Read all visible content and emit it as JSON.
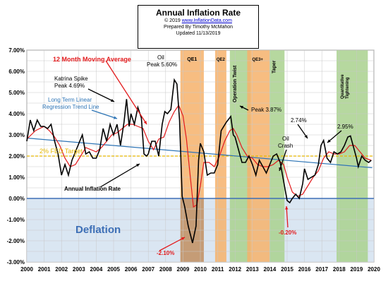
{
  "chart_data": {
    "type": "line",
    "title": "Annual  Inflation Rate",
    "subtitle_lines": [
      "© 2019  ",
      "www.InflationData.com",
      "Prepared  By Timothy McMahon",
      "Updated  11/13/2019"
    ],
    "xlabel": "",
    "ylabel": "",
    "xlim": [
      2000,
      2020
    ],
    "ylim": [
      -3.0,
      7.0
    ],
    "x_ticks": [
      "2000",
      "2001",
      "2002",
      "2003",
      "2004",
      "2005",
      "2006",
      "2007",
      "2008",
      "2009",
      "2010",
      "2011",
      "2012",
      "2013",
      "2014",
      "2015",
      "2016",
      "2017",
      "2018",
      "2019",
      "2020"
    ],
    "y_ticks": [
      "7.00%",
      "6.00%",
      "5.00%",
      "4.00%",
      "3.00%",
      "2.00%",
      "1.00%",
      "0.00%",
      "-1.00%",
      "-2.00%",
      "-3.00%"
    ],
    "grid": true,
    "colors": {
      "inflation": "#000000",
      "moving_average": "#e31a1c",
      "trend": "#2e75b6",
      "fed_target": "#e6b800",
      "deflation_fill": "#dae6f2",
      "qe_fill": "#f6b26b",
      "taper_fill": "#a9d18e",
      "zero_line": "#3d6fb6"
    },
    "series": [
      {
        "name": "Annual Inflation Rate",
        "points": [
          [
            2000,
            2.7
          ],
          [
            2000.2,
            3.7
          ],
          [
            2000.4,
            3.2
          ],
          [
            2000.6,
            3.7
          ],
          [
            2000.8,
            3.4
          ],
          [
            2001.0,
            3.4
          ],
          [
            2001.2,
            3.3
          ],
          [
            2001.4,
            3.5
          ],
          [
            2001.6,
            2.7
          ],
          [
            2001.8,
            2.1
          ],
          [
            2002.0,
            1.1
          ],
          [
            2002.2,
            1.6
          ],
          [
            2002.4,
            1.1
          ],
          [
            2002.6,
            1.8
          ],
          [
            2002.8,
            2.2
          ],
          [
            2003.0,
            2.6
          ],
          [
            2003.2,
            3.0
          ],
          [
            2003.4,
            2.1
          ],
          [
            2003.6,
            2.2
          ],
          [
            2003.8,
            1.9
          ],
          [
            2004.0,
            1.9
          ],
          [
            2004.2,
            2.3
          ],
          [
            2004.4,
            3.3
          ],
          [
            2004.6,
            2.7
          ],
          [
            2004.8,
            3.5
          ],
          [
            2005.0,
            3.0
          ],
          [
            2005.2,
            3.5
          ],
          [
            2005.4,
            2.5
          ],
          [
            2005.6,
            3.6
          ],
          [
            2005.75,
            4.69
          ],
          [
            2005.9,
            3.4
          ],
          [
            2006.0,
            4.0
          ],
          [
            2006.2,
            3.5
          ],
          [
            2006.4,
            4.3
          ],
          [
            2006.6,
            3.8
          ],
          [
            2006.75,
            2.1
          ],
          [
            2006.9,
            2.0
          ],
          [
            2007.0,
            2.1
          ],
          [
            2007.2,
            2.7
          ],
          [
            2007.4,
            2.7
          ],
          [
            2007.6,
            2.0
          ],
          [
            2007.8,
            3.5
          ],
          [
            2007.95,
            4.1
          ],
          [
            2008.1,
            4.0
          ],
          [
            2008.3,
            4.2
          ],
          [
            2008.5,
            5.6
          ],
          [
            2008.65,
            5.4
          ],
          [
            2008.8,
            3.7
          ],
          [
            2008.95,
            0.1
          ],
          [
            2009.1,
            -0.4
          ],
          [
            2009.3,
            -1.3
          ],
          [
            2009.55,
            -2.1
          ],
          [
            2009.75,
            -1.3
          ],
          [
            2009.9,
            1.8
          ],
          [
            2010.0,
            2.6
          ],
          [
            2010.2,
            2.2
          ],
          [
            2010.4,
            1.1
          ],
          [
            2010.6,
            1.2
          ],
          [
            2010.8,
            1.2
          ],
          [
            2011.0,
            1.6
          ],
          [
            2011.2,
            3.2
          ],
          [
            2011.5,
            3.6
          ],
          [
            2011.75,
            3.87
          ],
          [
            2011.9,
            3.0
          ],
          [
            2012.0,
            2.9
          ],
          [
            2012.2,
            2.3
          ],
          [
            2012.4,
            1.7
          ],
          [
            2012.6,
            1.7
          ],
          [
            2012.8,
            2.0
          ],
          [
            2013.0,
            1.6
          ],
          [
            2013.2,
            1.1
          ],
          [
            2013.4,
            1.8
          ],
          [
            2013.6,
            1.5
          ],
          [
            2013.8,
            1.2
          ],
          [
            2014.0,
            1.6
          ],
          [
            2014.2,
            2.0
          ],
          [
            2014.4,
            2.1
          ],
          [
            2014.6,
            1.7
          ],
          [
            2014.8,
            0.8
          ],
          [
            2015.0,
            -0.1
          ],
          [
            2015.15,
            -0.2
          ],
          [
            2015.3,
            0.0
          ],
          [
            2015.5,
            0.2
          ],
          [
            2015.7,
            0.0
          ],
          [
            2015.9,
            0.7
          ],
          [
            2016.0,
            1.4
          ],
          [
            2016.2,
            0.9
          ],
          [
            2016.4,
            1.0
          ],
          [
            2016.6,
            1.1
          ],
          [
            2016.8,
            1.6
          ],
          [
            2016.95,
            2.5
          ],
          [
            2017.1,
            2.74
          ],
          [
            2017.3,
            1.9
          ],
          [
            2017.5,
            1.7
          ],
          [
            2017.7,
            2.2
          ],
          [
            2017.9,
            2.1
          ],
          [
            2018.1,
            2.2
          ],
          [
            2018.3,
            2.5
          ],
          [
            2018.5,
            2.9
          ],
          [
            2018.65,
            2.95
          ],
          [
            2018.8,
            2.5
          ],
          [
            2019.0,
            1.9
          ],
          [
            2019.1,
            1.5
          ],
          [
            2019.3,
            2.0
          ],
          [
            2019.5,
            1.8
          ],
          [
            2019.7,
            1.7
          ],
          [
            2019.85,
            1.8
          ]
        ]
      },
      {
        "name": "12 Month Moving Average",
        "points": [
          [
            2000,
            2.8
          ],
          [
            2000.5,
            3.2
          ],
          [
            2001.0,
            3.4
          ],
          [
            2001.3,
            3.2
          ],
          [
            2001.6,
            2.9
          ],
          [
            2001.9,
            2.5
          ],
          [
            2002.2,
            1.9
          ],
          [
            2002.5,
            1.5
          ],
          [
            2002.8,
            1.6
          ],
          [
            2003.1,
            2.0
          ],
          [
            2003.4,
            2.4
          ],
          [
            2003.7,
            2.3
          ],
          [
            2004.0,
            2.2
          ],
          [
            2004.3,
            2.4
          ],
          [
            2004.6,
            2.7
          ],
          [
            2004.9,
            3.0
          ],
          [
            2005.2,
            3.1
          ],
          [
            2005.5,
            3.3
          ],
          [
            2005.8,
            3.5
          ],
          [
            2006.1,
            3.5
          ],
          [
            2006.4,
            3.4
          ],
          [
            2006.7,
            3.3
          ],
          [
            2007.0,
            2.7
          ],
          [
            2007.3,
            2.3
          ],
          [
            2007.6,
            2.8
          ],
          [
            2007.9,
            2.9
          ],
          [
            2008.2,
            3.6
          ],
          [
            2008.5,
            4.1
          ],
          [
            2008.75,
            4.4
          ],
          [
            2009.0,
            3.9
          ],
          [
            2009.2,
            2.8
          ],
          [
            2009.4,
            1.2
          ],
          [
            2009.6,
            -0.4
          ],
          [
            2009.8,
            -0.3
          ],
          [
            2010.0,
            0.6
          ],
          [
            2010.2,
            1.7
          ],
          [
            2010.5,
            1.7
          ],
          [
            2010.8,
            1.5
          ],
          [
            2011.1,
            2.0
          ],
          [
            2011.4,
            2.7
          ],
          [
            2011.7,
            3.2
          ],
          [
            2011.9,
            3.3
          ],
          [
            2012.1,
            3.0
          ],
          [
            2012.4,
            2.4
          ],
          [
            2012.7,
            2.0
          ],
          [
            2013.0,
            1.9
          ],
          [
            2013.3,
            1.6
          ],
          [
            2013.6,
            1.5
          ],
          [
            2013.9,
            1.5
          ],
          [
            2014.2,
            1.6
          ],
          [
            2014.5,
            1.8
          ],
          [
            2014.8,
            1.6
          ],
          [
            2015.0,
            1.0
          ],
          [
            2015.3,
            0.3
          ],
          [
            2015.6,
            0.1
          ],
          [
            2015.9,
            0.2
          ],
          [
            2016.2,
            0.6
          ],
          [
            2016.5,
            1.0
          ],
          [
            2016.8,
            1.3
          ],
          [
            2017.1,
            1.9
          ],
          [
            2017.4,
            2.2
          ],
          [
            2017.7,
            2.1
          ],
          [
            2018.0,
            2.1
          ],
          [
            2018.3,
            2.2
          ],
          [
            2018.6,
            2.5
          ],
          [
            2018.9,
            2.5
          ],
          [
            2019.2,
            2.2
          ],
          [
            2019.5,
            1.9
          ],
          [
            2019.85,
            1.8
          ]
        ]
      }
    ],
    "trend_line": {
      "name": "Long Term Linear Regression Trend Line",
      "from": [
        2000,
        2.85
      ],
      "to": [
        2019.9,
        1.45
      ]
    },
    "fed_target": {
      "label": "2% FED Target",
      "value": 2.0
    },
    "zero_line": 0.0,
    "shaded_regions": [
      {
        "label": "QE1",
        "start": 2008.85,
        "end": 2010.2,
        "color": "#f6b26b"
      },
      {
        "label": "QE2",
        "start": 2010.85,
        "end": 2011.5,
        "color": "#f6b26b"
      },
      {
        "label": "Operation Twist",
        "start": 2011.7,
        "end": 2012.9,
        "color": "#a9d18e"
      },
      {
        "label": "QE3+",
        "start": 2012.7,
        "end": 2014.0,
        "color": "#f6b26b"
      },
      {
        "label": "Taper",
        "start": 2014.0,
        "end": 2014.85,
        "color": "#a9d18e"
      },
      {
        "label": "Quantitative Tightening",
        "start": 2017.85,
        "end": 2019.65,
        "color": "#a9d18e"
      }
    ],
    "deflation_region": {
      "label": "Deflation",
      "from": 0.0,
      "to": -3.0
    },
    "annotations": [
      {
        "text": "12 Month Moving Average",
        "color": "#e31a1c",
        "bold": true
      },
      {
        "text": "Katrina Spike",
        "color": "#000000"
      },
      {
        "text": "Peak 4.69%",
        "color": "#000000"
      },
      {
        "text": "Long Term Linear",
        "color": "#2e75b6"
      },
      {
        "text": "Regression Trend Line",
        "color": "#2e75b6"
      },
      {
        "text": "Oil",
        "color": "#000000"
      },
      {
        "text": "Peak 5.60%",
        "color": "#000000"
      },
      {
        "text": "Peak 3.87%",
        "color": "#000000"
      },
      {
        "text": "2.74%",
        "color": "#000000"
      },
      {
        "text": "2.95%",
        "color": "#000000"
      },
      {
        "text": "Oil",
        "color": "#000000"
      },
      {
        "text": "Crash",
        "color": "#000000"
      },
      {
        "text": "Annual Inflation Rate",
        "color": "#000000"
      },
      {
        "text": "-2.10%",
        "color": "#e31a1c"
      },
      {
        "text": "-0.20%",
        "color": "#e31a1c"
      }
    ]
  }
}
